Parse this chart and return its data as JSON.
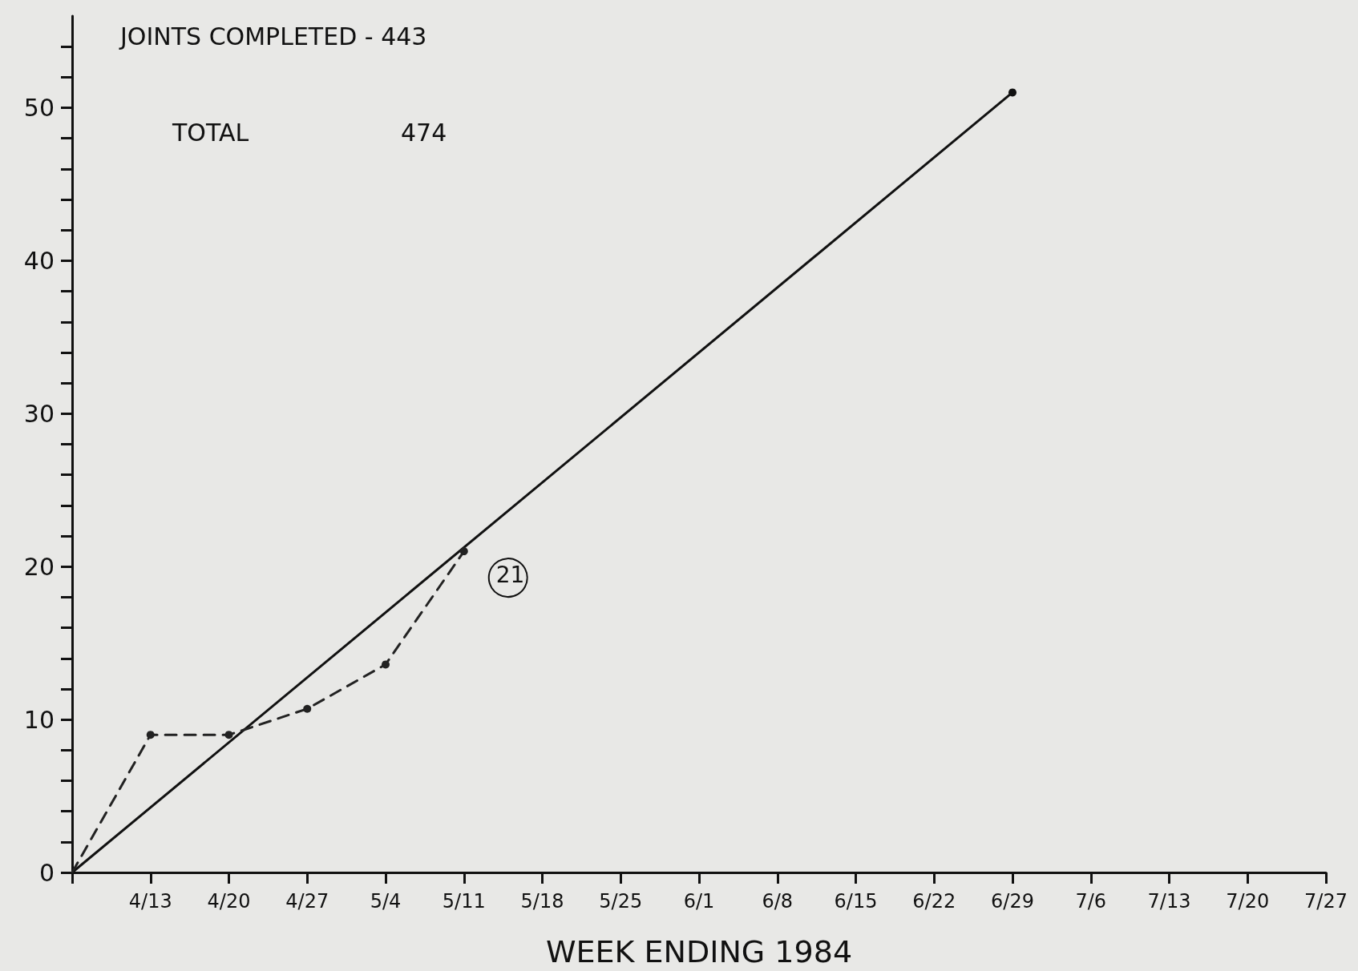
{
  "chart_data": {
    "type": "line",
    "xlabel": "WEEK ENDING 1984",
    "categories": [
      null,
      "4/13",
      "4/20",
      "4/27",
      "5/4",
      "5/11",
      "5/18",
      "5/25",
      "6/1",
      "6/8",
      "6/15",
      "6/22",
      "6/29",
      "7/6",
      "7/13",
      "7/20",
      "7/27"
    ],
    "series": [
      {
        "color": "#111111",
        "line_style": "solid",
        "values": [
          0,
          null,
          null,
          null,
          null,
          null,
          null,
          null,
          null,
          null,
          null,
          null,
          51,
          null,
          null,
          null,
          null
        ]
      },
      {
        "color": "#222222",
        "line_style": "dashed",
        "values": [
          0,
          9,
          9,
          10.7,
          13.6,
          21,
          null,
          null,
          null,
          null,
          null,
          null,
          null,
          null,
          null,
          null,
          null
        ]
      }
    ],
    "ylim": [
      0,
      56
    ],
    "yticks": [
      0,
      {
        "value": 2,
        "label": null
      },
      {
        "value": 4,
        "label": null
      },
      {
        "value": 6,
        "label": null
      },
      {
        "value": 8,
        "label": null
      },
      10,
      {
        "value": 12,
        "label": null
      },
      {
        "value": 14,
        "label": null
      },
      {
        "value": 16,
        "label": null
      },
      {
        "value": 18,
        "label": null
      },
      20,
      {
        "value": 22,
        "label": null
      },
      {
        "value": 24,
        "label": null
      },
      {
        "value": 26,
        "label": null
      },
      {
        "value": 28,
        "label": null
      },
      30,
      {
        "value": 32,
        "label": null
      },
      {
        "value": 34,
        "label": null
      },
      {
        "value": 36,
        "label": null
      },
      {
        "value": 38,
        "label": null
      },
      40,
      {
        "value": 42,
        "label": null
      },
      {
        "value": 44,
        "label": null
      },
      {
        "value": 46,
        "label": null
      },
      {
        "value": 48,
        "label": null
      },
      50,
      {
        "value": 52,
        "label": null
      },
      {
        "value": 54,
        "label": null
      }
    ],
    "annotations": [
      "JOINTS COMPLETED - 443",
      "TOTAL",
      "474",
      {
        "text": "21",
        "x": "5/11",
        "y": 21
      }
    ],
    "marker": "circle",
    "grid": false
  }
}
